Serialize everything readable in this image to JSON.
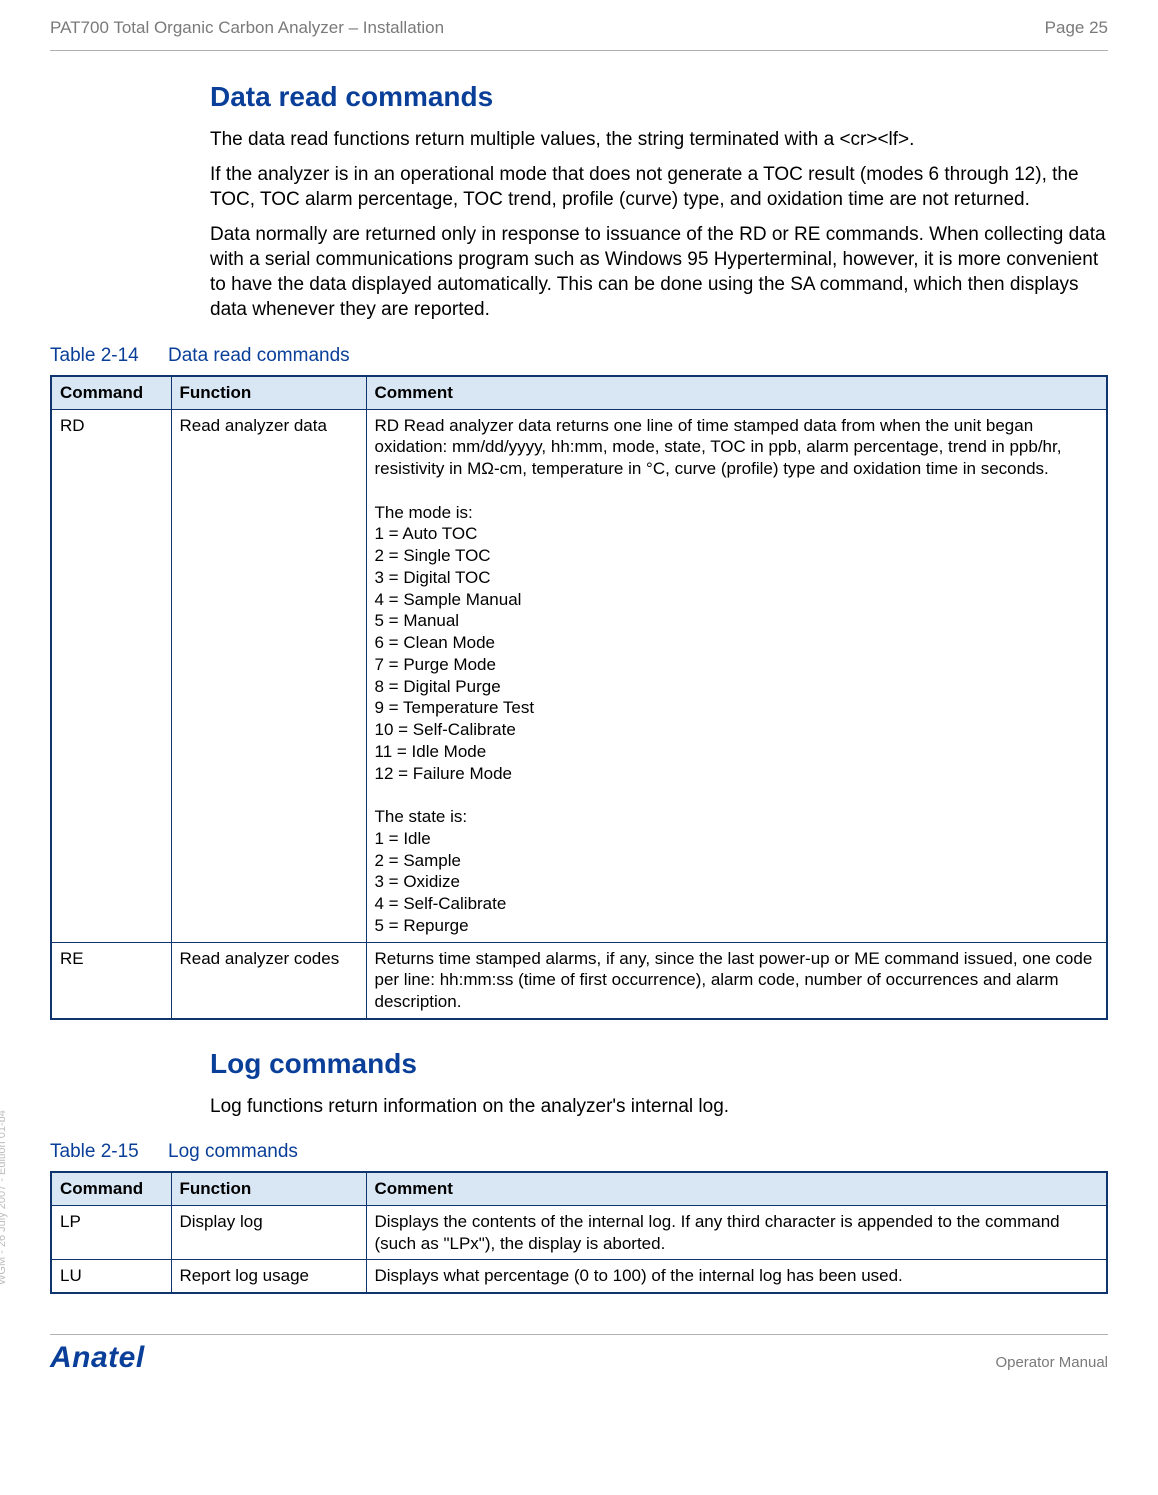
{
  "header": {
    "left": "PAT700 Total Organic Carbon Analyzer – Installation",
    "right": "Page 25"
  },
  "section1": {
    "heading": "Data read commands",
    "p1": "The data read functions return multiple values, the string terminated with a <cr><lf>.",
    "p2": "If the analyzer is in an operational mode that does not generate a TOC result (modes 6 through 12), the TOC, TOC alarm percentage, TOC trend, profile (curve) type, and oxidation time are not returned.",
    "p3": "Data normally are returned only in response to issuance of the RD or RE commands. When collecting data with a serial communications program such as Windows 95 Hyperterminal, however, it is more convenient to have the data displayed automatically. This can be done using the SA command, which then displays data whenever they are reported."
  },
  "table1": {
    "caption_num": "Table 2-14",
    "caption_title": "Data read commands",
    "columns": [
      "Command",
      "Function",
      "Comment"
    ],
    "rows": [
      {
        "command": "RD",
        "function": "Read analyzer data",
        "comment_intro": "RD Read analyzer data returns one line of time stamped data from when the unit began oxidation: mm/dd/yyyy, hh:mm, mode, state, TOC in ppb, alarm percentage, trend in ppb/hr, resistivity in MΩ-cm, temperature in °C, curve (profile) type and oxidation time in seconds.",
        "mode_heading": "The mode is:",
        "modes": [
          "1 = Auto TOC",
          "2 = Single TOC",
          "3 = Digital TOC",
          "4 = Sample Manual",
          "5 = Manual",
          "6 = Clean Mode",
          "7 = Purge Mode",
          "8 = Digital Purge",
          "9 = Temperature Test",
          "10 = Self-Calibrate",
          "11 = Idle Mode",
          "12 = Failure Mode"
        ],
        "state_heading": "The state is:",
        "states": [
          "1 = Idle",
          "2 = Sample",
          "3 = Oxidize",
          "4 = Self-Calibrate",
          "5 = Repurge"
        ]
      },
      {
        "command": "RE",
        "function": "Read analyzer codes",
        "comment": "Returns time stamped alarms, if any, since the last power-up or ME command issued, one code per line: hh:mm:ss (time of first occurrence), alarm code, number of occurrences and alarm description."
      }
    ]
  },
  "section2": {
    "heading": "Log commands",
    "p1": "Log functions return information on the analyzer's internal log."
  },
  "table2": {
    "caption_num": "Table 2-15",
    "caption_title": "Log commands",
    "columns": [
      "Command",
      "Function",
      "Comment"
    ],
    "rows": [
      {
        "command": "LP",
        "function": "Display log",
        "comment": "Displays the contents of the internal log. If any third character is appended to the command (such as \"LPx\"), the display is aborted."
      },
      {
        "command": "LU",
        "function": "Report log usage",
        "comment": "Displays what percentage (0 to 100) of the internal log has been used."
      }
    ]
  },
  "footer": {
    "brand": "Anatel",
    "label": "Operator Manual"
  },
  "side": "WGM - 26 July 2007 - Edition 01-b4"
}
